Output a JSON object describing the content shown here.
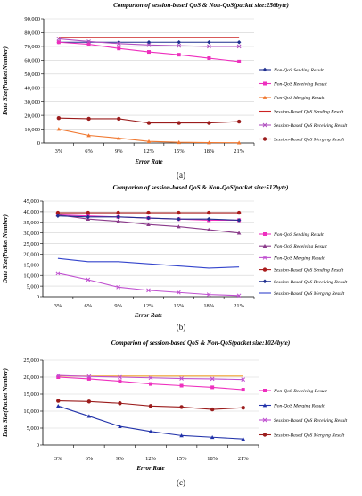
{
  "chart_data": [
    {
      "type": "line",
      "panel_label": "(a)",
      "title": "Comparion of session-based QoS & Non-QoS(packet size:256byte)",
      "xlabel": "Error Rate",
      "ylabel": "Data Size(Packet Number)",
      "categories": [
        "3%",
        "6%",
        "9%",
        "12%",
        "15%",
        "18%",
        "21%"
      ],
      "ylim": [
        0,
        90000
      ],
      "yticks": [
        "0",
        "10,000",
        "20,000",
        "30,000",
        "40,000",
        "50,000",
        "60,000",
        "70,000",
        "80,000",
        "90,000"
      ],
      "legend": "right",
      "series": [
        {
          "name": "Non-QoS  Sending Result",
          "color": "#1f2f8f",
          "marker": "diamond",
          "values": [
            73000,
            73000,
            73000,
            73000,
            73000,
            73000,
            73000
          ]
        },
        {
          "name": "Non-QoS  Receiving Result",
          "color": "#ee2fbe",
          "marker": "square",
          "values": [
            73000,
            71500,
            68500,
            66000,
            64000,
            61500,
            59000
          ]
        },
        {
          "name": "Non-QoS  Merging Result",
          "color": "#f07830",
          "marker": "triangle",
          "values": [
            10000,
            5500,
            3500,
            1200,
            500,
            300,
            200
          ]
        },
        {
          "name": "Session-Based QoS Sending Result",
          "color": "#cc2222",
          "marker": "none",
          "values": [
            76500,
            76500,
            76500,
            76500,
            76500,
            76500,
            76500
          ]
        },
        {
          "name": "Session-Based QoS Receiving Result",
          "color": "#b050c0",
          "marker": "x",
          "values": [
            75500,
            73500,
            72000,
            71000,
            70500,
            70000,
            70000
          ]
        },
        {
          "name": "Session-Based QoS Merging Result",
          "color": "#9b1c1c",
          "marker": "circle",
          "values": [
            18000,
            17500,
            17500,
            14500,
            14500,
            14500,
            15500
          ]
        }
      ]
    },
    {
      "type": "line",
      "panel_label": "(b)",
      "title": "Comparion of session-based QoS & Non-QoS(packet size:512byte)",
      "xlabel": "Error Rate",
      "ylabel": "Data Size(Packet Number)",
      "categories": [
        "3%",
        "6%",
        "9%",
        "12%",
        "15%",
        "18%",
        "21%"
      ],
      "ylim": [
        0,
        45000
      ],
      "yticks": [
        "0",
        "5,000",
        "10,000",
        "15,000",
        "20,000",
        "25,000",
        "30,000",
        "35,000",
        "40,000",
        "45,000"
      ],
      "legend": "right",
      "series": [
        {
          "name": "Non-QoS  Sending Result",
          "color": "#ee2fbe",
          "marker": "square",
          "values": [
            38500,
            38000,
            37500,
            37000,
            36500,
            36000,
            36000
          ]
        },
        {
          "name": "Non-QoS  Receiving Result",
          "color": "#8a3a8a",
          "marker": "triangle",
          "values": [
            38500,
            36500,
            35500,
            34000,
            33000,
            31500,
            30000
          ]
        },
        {
          "name": "Non-QoS  Merging Result",
          "color": "#c050d0",
          "marker": "x",
          "values": [
            11000,
            8000,
            4500,
            3000,
            2000,
            1000,
            500
          ]
        },
        {
          "name": "Session-Based QoS Sending Result",
          "color": "#aa1c1c",
          "marker": "circle",
          "values": [
            39500,
            39500,
            39500,
            39500,
            39500,
            39500,
            39500
          ]
        },
        {
          "name": "Session-Based QoS Receiving Result",
          "color": "#1f2f8f",
          "marker": "diamond",
          "values": [
            38000,
            37500,
            37500,
            37000,
            36500,
            36500,
            36000
          ]
        },
        {
          "name": "Session-Based QoS Merging Result",
          "color": "#3344cc",
          "marker": "none",
          "values": [
            18000,
            16500,
            16500,
            15500,
            14500,
            13500,
            14000
          ]
        }
      ]
    },
    {
      "type": "line",
      "panel_label": "(c)",
      "title": "Comparion of session-based QoS & Non-QoS(packet size:1024byte)",
      "xlabel": "Error Rate",
      "ylabel": "Data Size(Packet Number)",
      "categories": [
        "3%",
        "6%",
        "9%",
        "12%",
        "15%",
        "18%",
        "21%"
      ],
      "ylim": [
        0,
        25000
      ],
      "yticks": [
        "0",
        "5,000",
        "10,000",
        "15,000",
        "20,000",
        "25,000"
      ],
      "legend": "right",
      "series": [
        {
          "name": "",
          "color": "#f0a030",
          "marker": "none",
          "values": [
            20300,
            20300,
            20300,
            20300,
            20300,
            20300,
            20300
          ]
        },
        {
          "name": "Non-QoS  Receiving Result",
          "color": "#ee2fbe",
          "marker": "square",
          "values": [
            20000,
            19500,
            18800,
            18000,
            17500,
            17000,
            16300
          ]
        },
        {
          "name": "Non-QoS  Merging Result",
          "color": "#2233aa",
          "marker": "triangle",
          "values": [
            11500,
            8500,
            5500,
            4000,
            2800,
            2300,
            1800
          ]
        },
        {
          "name": "Session-Based QoS Receiving Result",
          "color": "#c050d0",
          "marker": "x",
          "values": [
            20500,
            20200,
            20000,
            19800,
            19600,
            19500,
            19300
          ]
        },
        {
          "name": "Session-Based QoS Merging Result",
          "color": "#9b1c1c",
          "marker": "circle",
          "values": [
            13000,
            12800,
            12300,
            11500,
            11200,
            10500,
            11000
          ]
        }
      ]
    }
  ]
}
